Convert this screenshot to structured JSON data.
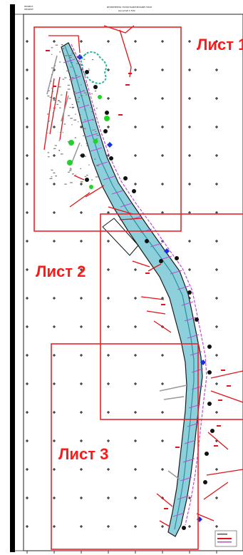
{
  "title_block": {
    "left_line1": "ПРОЕКТ",
    "left_line2": "ОБЪЕКТ",
    "center_title": "ИНЖЕНЕРНО-ТОПОГРАФИЧЕСКИЙ ПЛАН",
    "center_subtitle": "масштаб 1:500"
  },
  "sheets": [
    {
      "label": "Лист 1"
    },
    {
      "label": "Лист 2"
    },
    {
      "label": "Лист 3"
    }
  ],
  "colors": {
    "sheet_frame": "#e8232a",
    "route_fill": "#8ecfdc",
    "route_edge": "#1b1b1b",
    "pipe_magenta": "#c246d6",
    "red_feature": "#e0141a",
    "green_tree": "#22d22b",
    "blue_marker": "#1c2fe0",
    "teal_contour": "#27b6a2",
    "grid_cross": "#111111",
    "left_bar": "#000000"
  }
}
